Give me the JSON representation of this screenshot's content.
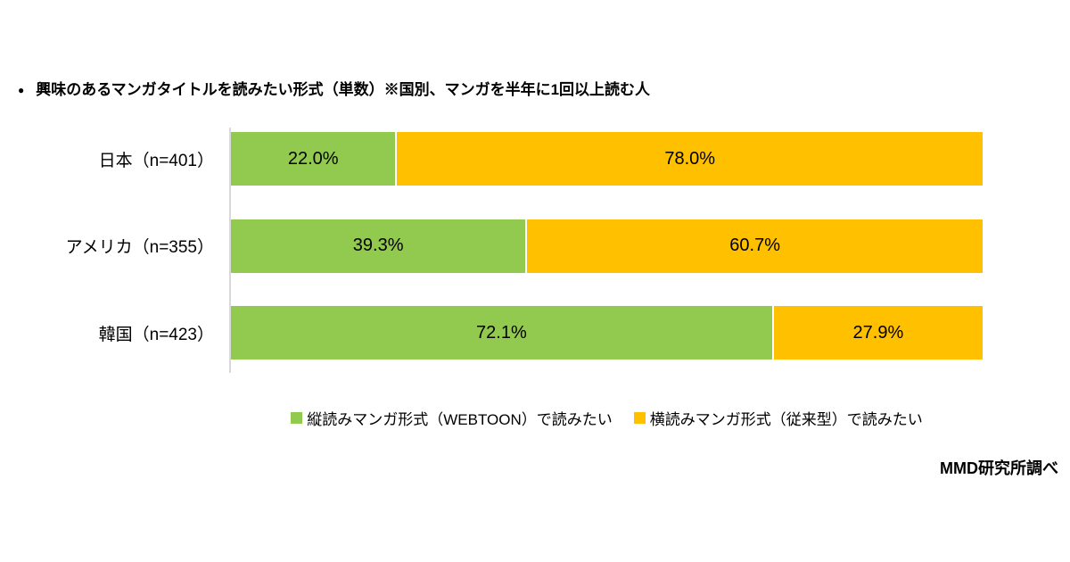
{
  "page": {
    "background": "#ffffff"
  },
  "title": {
    "bullet": "●",
    "text": "興味のあるマンガタイトルを読みたい形式（単数）※国別、マンガを半年に1回以上読む人"
  },
  "chart_data": {
    "type": "bar",
    "orientation": "horizontal",
    "stacked": true,
    "grid": false,
    "legend_position": "bottom",
    "xlim": [
      0,
      100
    ],
    "unit": "%",
    "categories": [
      "日本（n=401）",
      "アメリカ（n=355）",
      "韓国（n=423）"
    ],
    "series": [
      {
        "key": "webtoon",
        "name": "縦読みマンガ形式（WEBTOON）で読みたい",
        "color": "#92C94F",
        "values": [
          22.0,
          39.3,
          72.1
        ]
      },
      {
        "key": "traditional",
        "name": "横読みマンガ形式（従来型）で読みたい",
        "color": "#FFC000",
        "values": [
          78.0,
          60.7,
          27.9
        ]
      }
    ],
    "value_labels": [
      [
        "22.0%",
        "78.0%"
      ],
      [
        "39.3%",
        "60.7%"
      ],
      [
        "72.1%",
        "27.9%"
      ]
    ]
  },
  "source": "MMD研究所調べ",
  "colors": {
    "green": "#92C94F",
    "orange": "#FFC000",
    "axis_line": "#D9D9D9",
    "text": "#000000"
  }
}
